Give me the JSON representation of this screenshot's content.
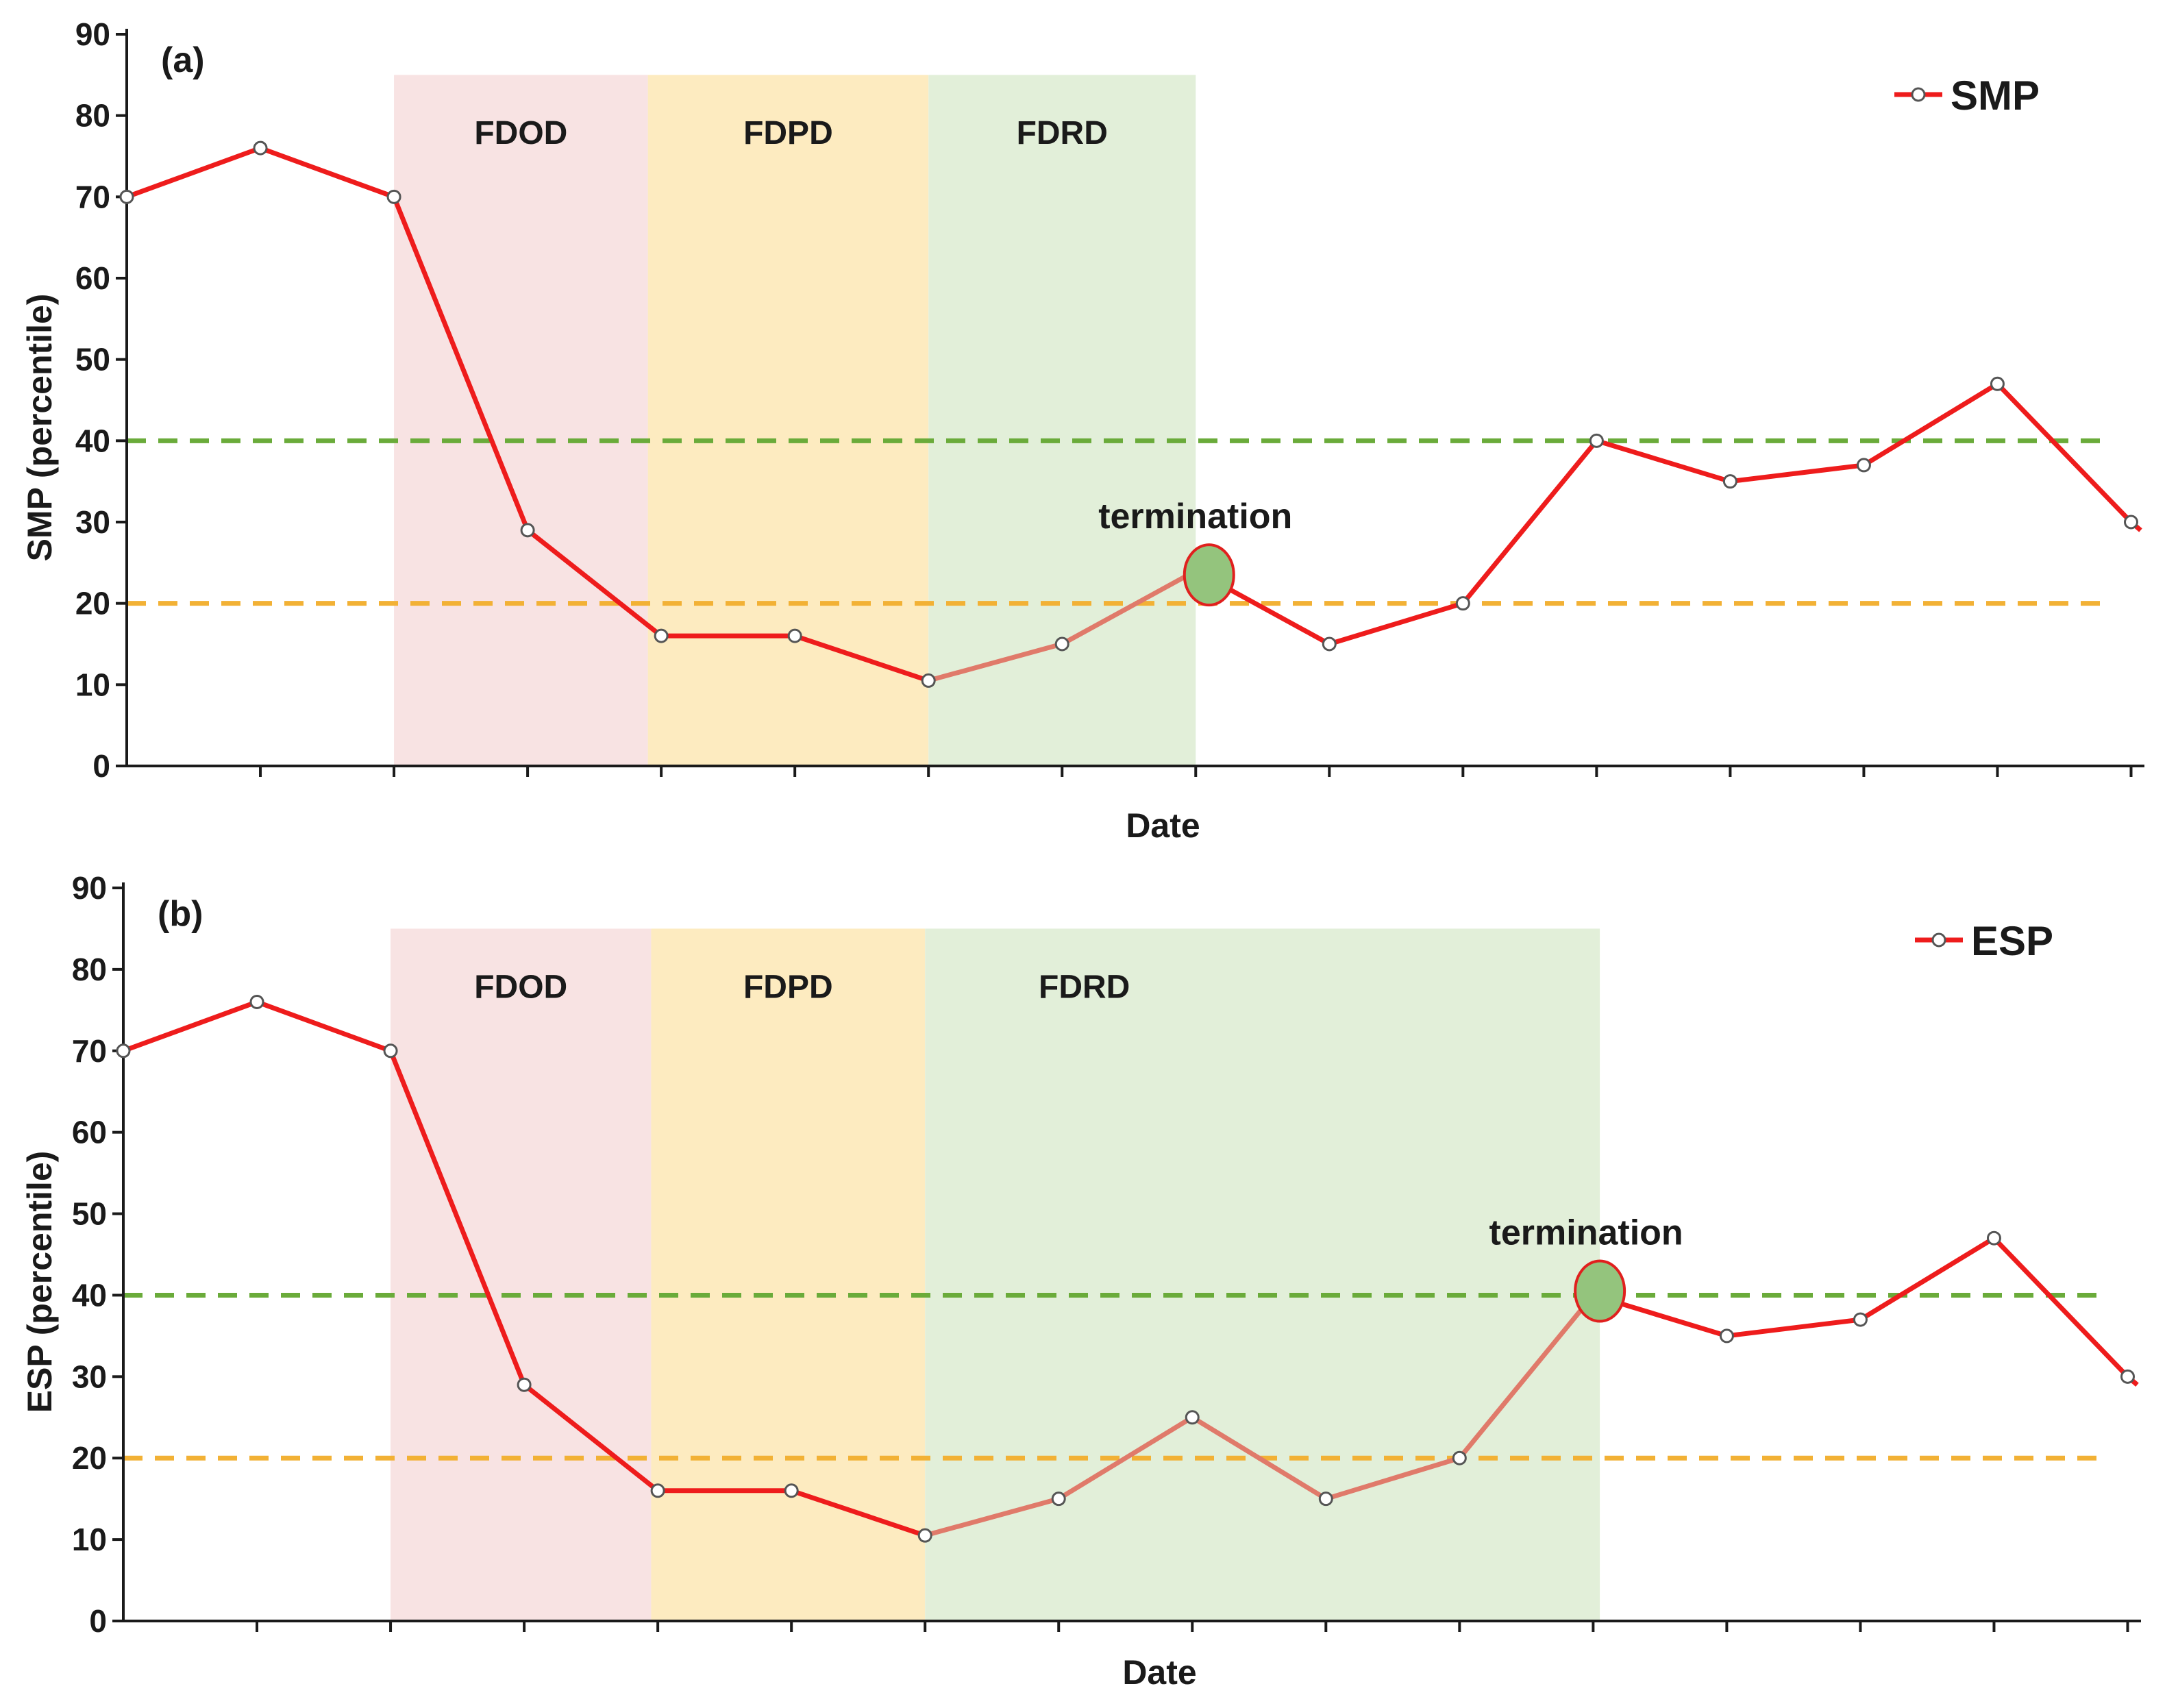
{
  "chart_data": [
    {
      "type": "line",
      "panel_label": "(a)",
      "xlabel": "Date",
      "ylabel": "SMP   (percentile)",
      "ylim": [
        0,
        90
      ],
      "yticks": [
        0,
        10,
        20,
        30,
        40,
        50,
        60,
        70,
        80,
        90
      ],
      "x": [
        0,
        1,
        2,
        3,
        4,
        5,
        6,
        7,
        8,
        9,
        10,
        11,
        12,
        13,
        14,
        15
      ],
      "xlim": [
        0,
        15.1
      ],
      "series": [
        {
          "name": "SMP",
          "color": "#ee1c1c",
          "values": [
            70,
            76,
            70,
            29,
            16,
            16,
            10.5,
            15,
            24,
            15,
            20,
            40,
            35,
            37,
            47,
            30
          ]
        }
      ],
      "stages": [
        {
          "label": "FDOD",
          "x_start": 2,
          "x_end": 3.9,
          "color": "#f8e3e3"
        },
        {
          "label": "FDPD",
          "x_start": 3.9,
          "x_end": 6,
          "color": "#fdebc0"
        },
        {
          "label": "FDRD",
          "x_start": 6,
          "x_end": 8,
          "color": "#e2efd9"
        }
      ],
      "reference_lines": [
        {
          "y": 40,
          "color": "#6aab3a"
        },
        {
          "y": 20,
          "color": "#f2b135"
        }
      ],
      "termination": {
        "label": "termination",
        "x": 8.1,
        "y": 23.5
      },
      "legend": {
        "label": "SMP",
        "position": "top-right"
      }
    },
    {
      "type": "line",
      "panel_label": "(b)",
      "xlabel": "Date",
      "ylabel": "ESP   (percentile)",
      "ylim": [
        0,
        90
      ],
      "yticks": [
        0,
        10,
        20,
        30,
        40,
        50,
        60,
        70,
        80,
        90
      ],
      "x": [
        0,
        1,
        2,
        3,
        4,
        5,
        6,
        7,
        8,
        9,
        10,
        11,
        12,
        13,
        14,
        15
      ],
      "xlim": [
        0,
        15.1
      ],
      "series": [
        {
          "name": "ESP",
          "color": "#ee1c1c",
          "values": [
            70,
            76,
            70,
            29,
            16,
            16,
            10.5,
            15,
            25,
            15,
            20,
            40,
            35,
            37,
            47,
            30
          ]
        }
      ],
      "stages": [
        {
          "label": "FDOD",
          "x_start": 2,
          "x_end": 3.95,
          "color": "#f8e3e3"
        },
        {
          "label": "FDPD",
          "x_start": 3.95,
          "x_end": 6,
          "color": "#fdebc0"
        },
        {
          "label": "FDRD",
          "x_start": 6,
          "x_end": 11.05,
          "color": "#e2efd9"
        }
      ],
      "reference_lines": [
        {
          "y": 40,
          "color": "#6aab3a"
        },
        {
          "y": 20,
          "color": "#f2b135"
        }
      ],
      "termination": {
        "label": "termination",
        "x": 11.05,
        "y": 40.5
      },
      "legend": {
        "label": "ESP",
        "position": "top-right"
      }
    }
  ]
}
